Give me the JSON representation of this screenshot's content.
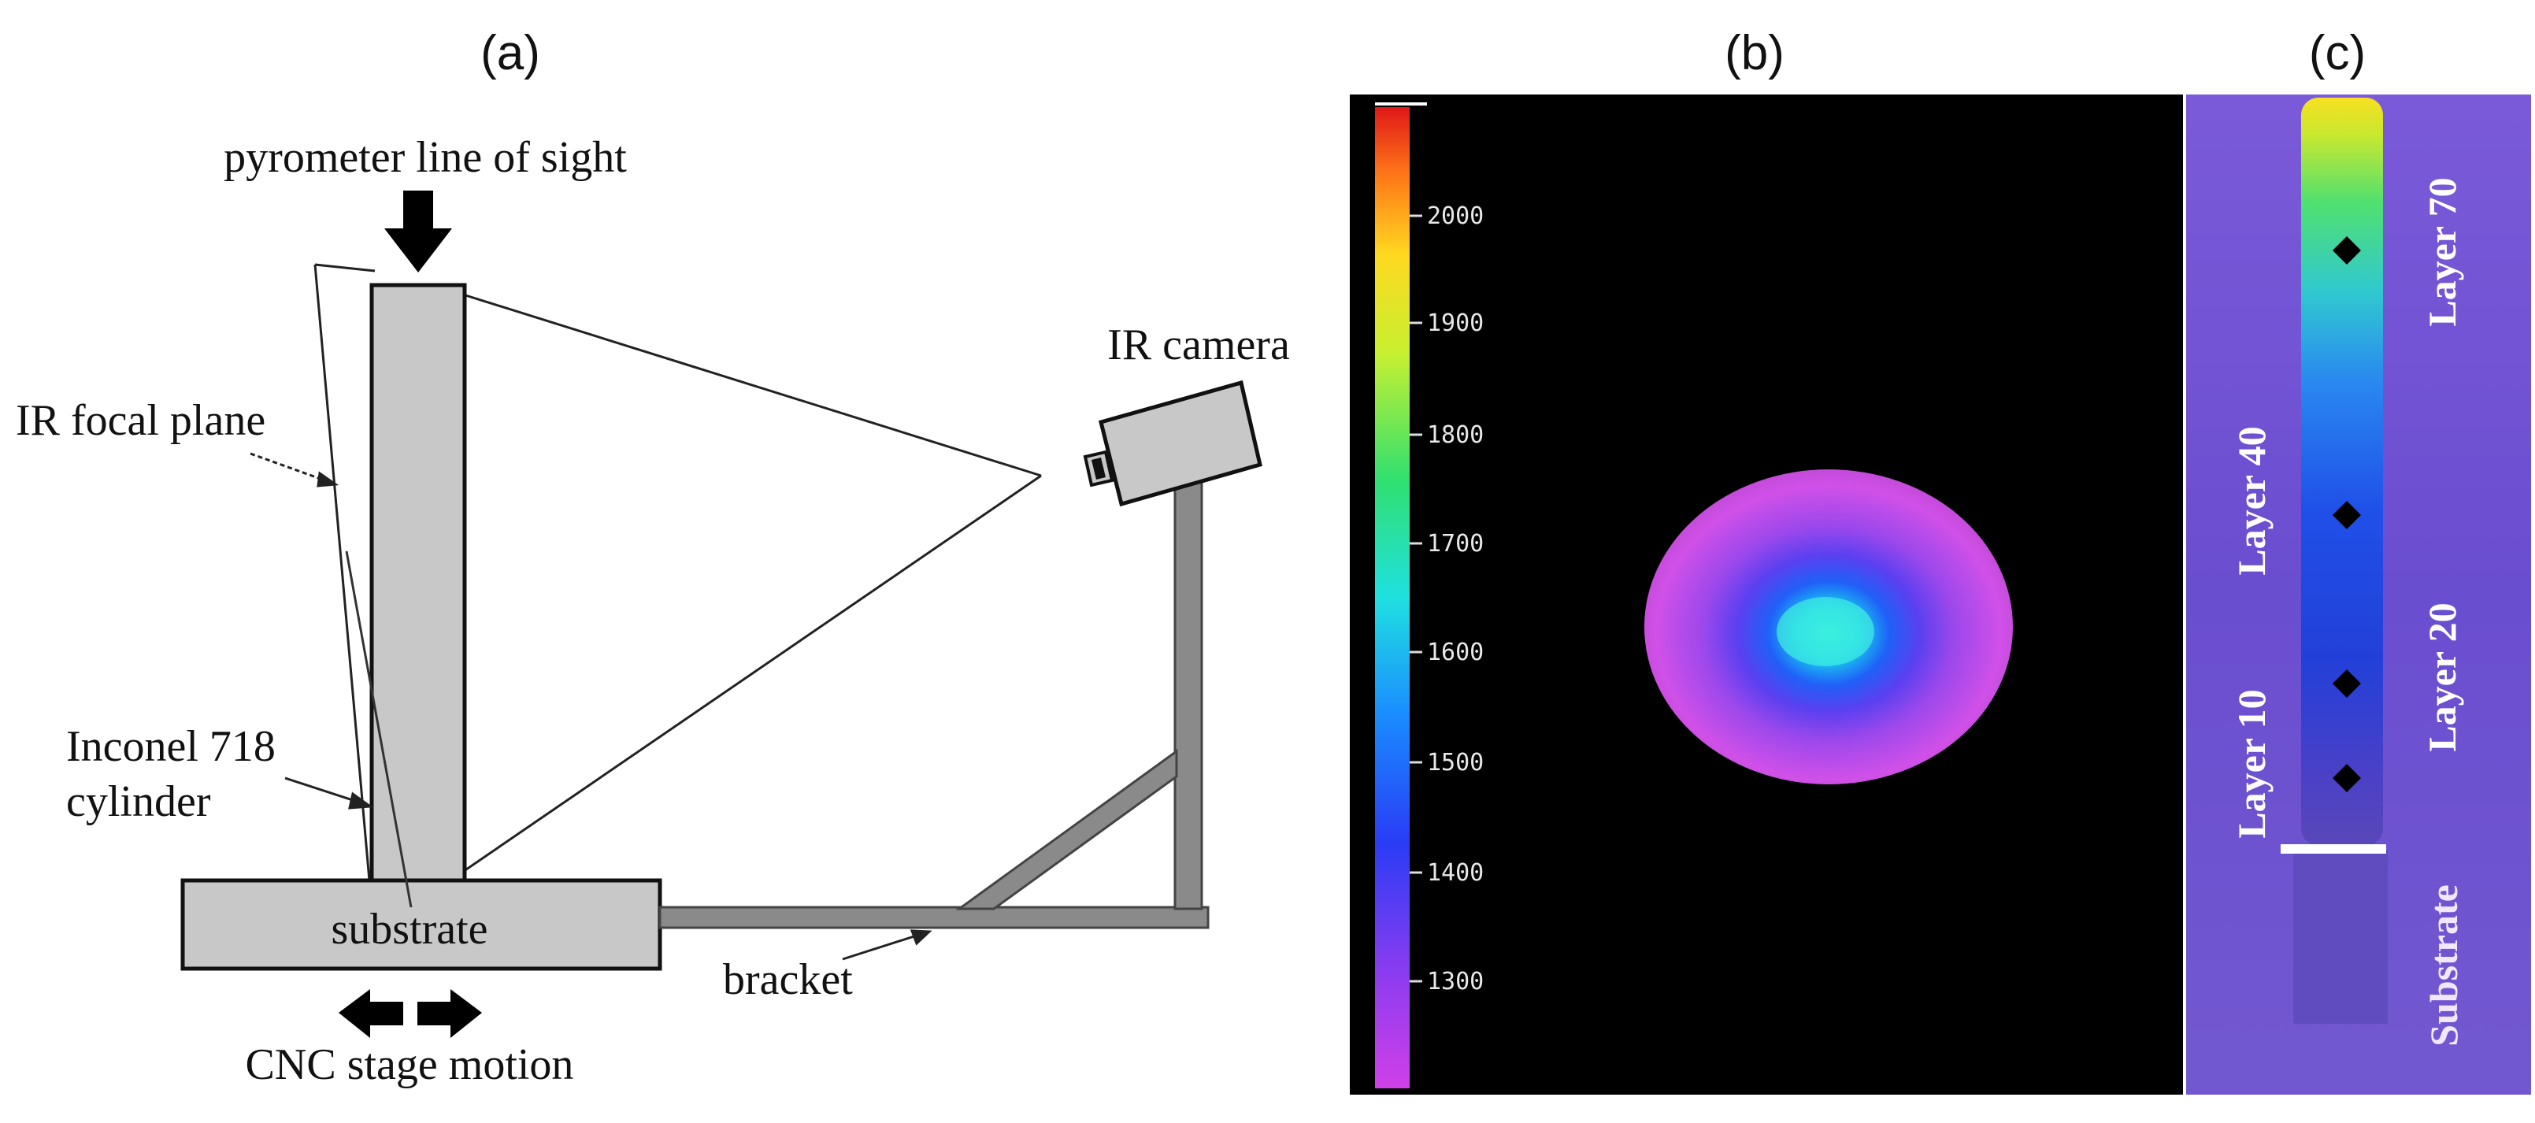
{
  "panels": {
    "a": {
      "label": "(a)",
      "pyrometer_label": "pyrometer line of sight",
      "ir_camera_label": "IR camera",
      "ir_focal_plane_label": "IR focal plane",
      "cylinder_label_line1": "Inconel 718",
      "cylinder_label_line2": "cylinder",
      "substrate_label": "substrate",
      "bracket_label": "bracket",
      "cnc_label": "CNC stage motion"
    },
    "b": {
      "label": "(b)",
      "colorbar_ticks": [
        "2000",
        "1900",
        "1800",
        "1700",
        "1600",
        "1500",
        "1400",
        "1300"
      ]
    },
    "c": {
      "label": "(c)",
      "layer_70": "Layer 70",
      "layer_40": "Layer 40",
      "layer_20": "Layer 20",
      "layer_10": "Layer 10",
      "substrate": "Substrate"
    }
  },
  "colors": {
    "part_fill": "#c8c8c8",
    "bracket_fill": "#888888",
    "ir_background": "#000000",
    "panel_c_background": "#6a4fd0"
  }
}
